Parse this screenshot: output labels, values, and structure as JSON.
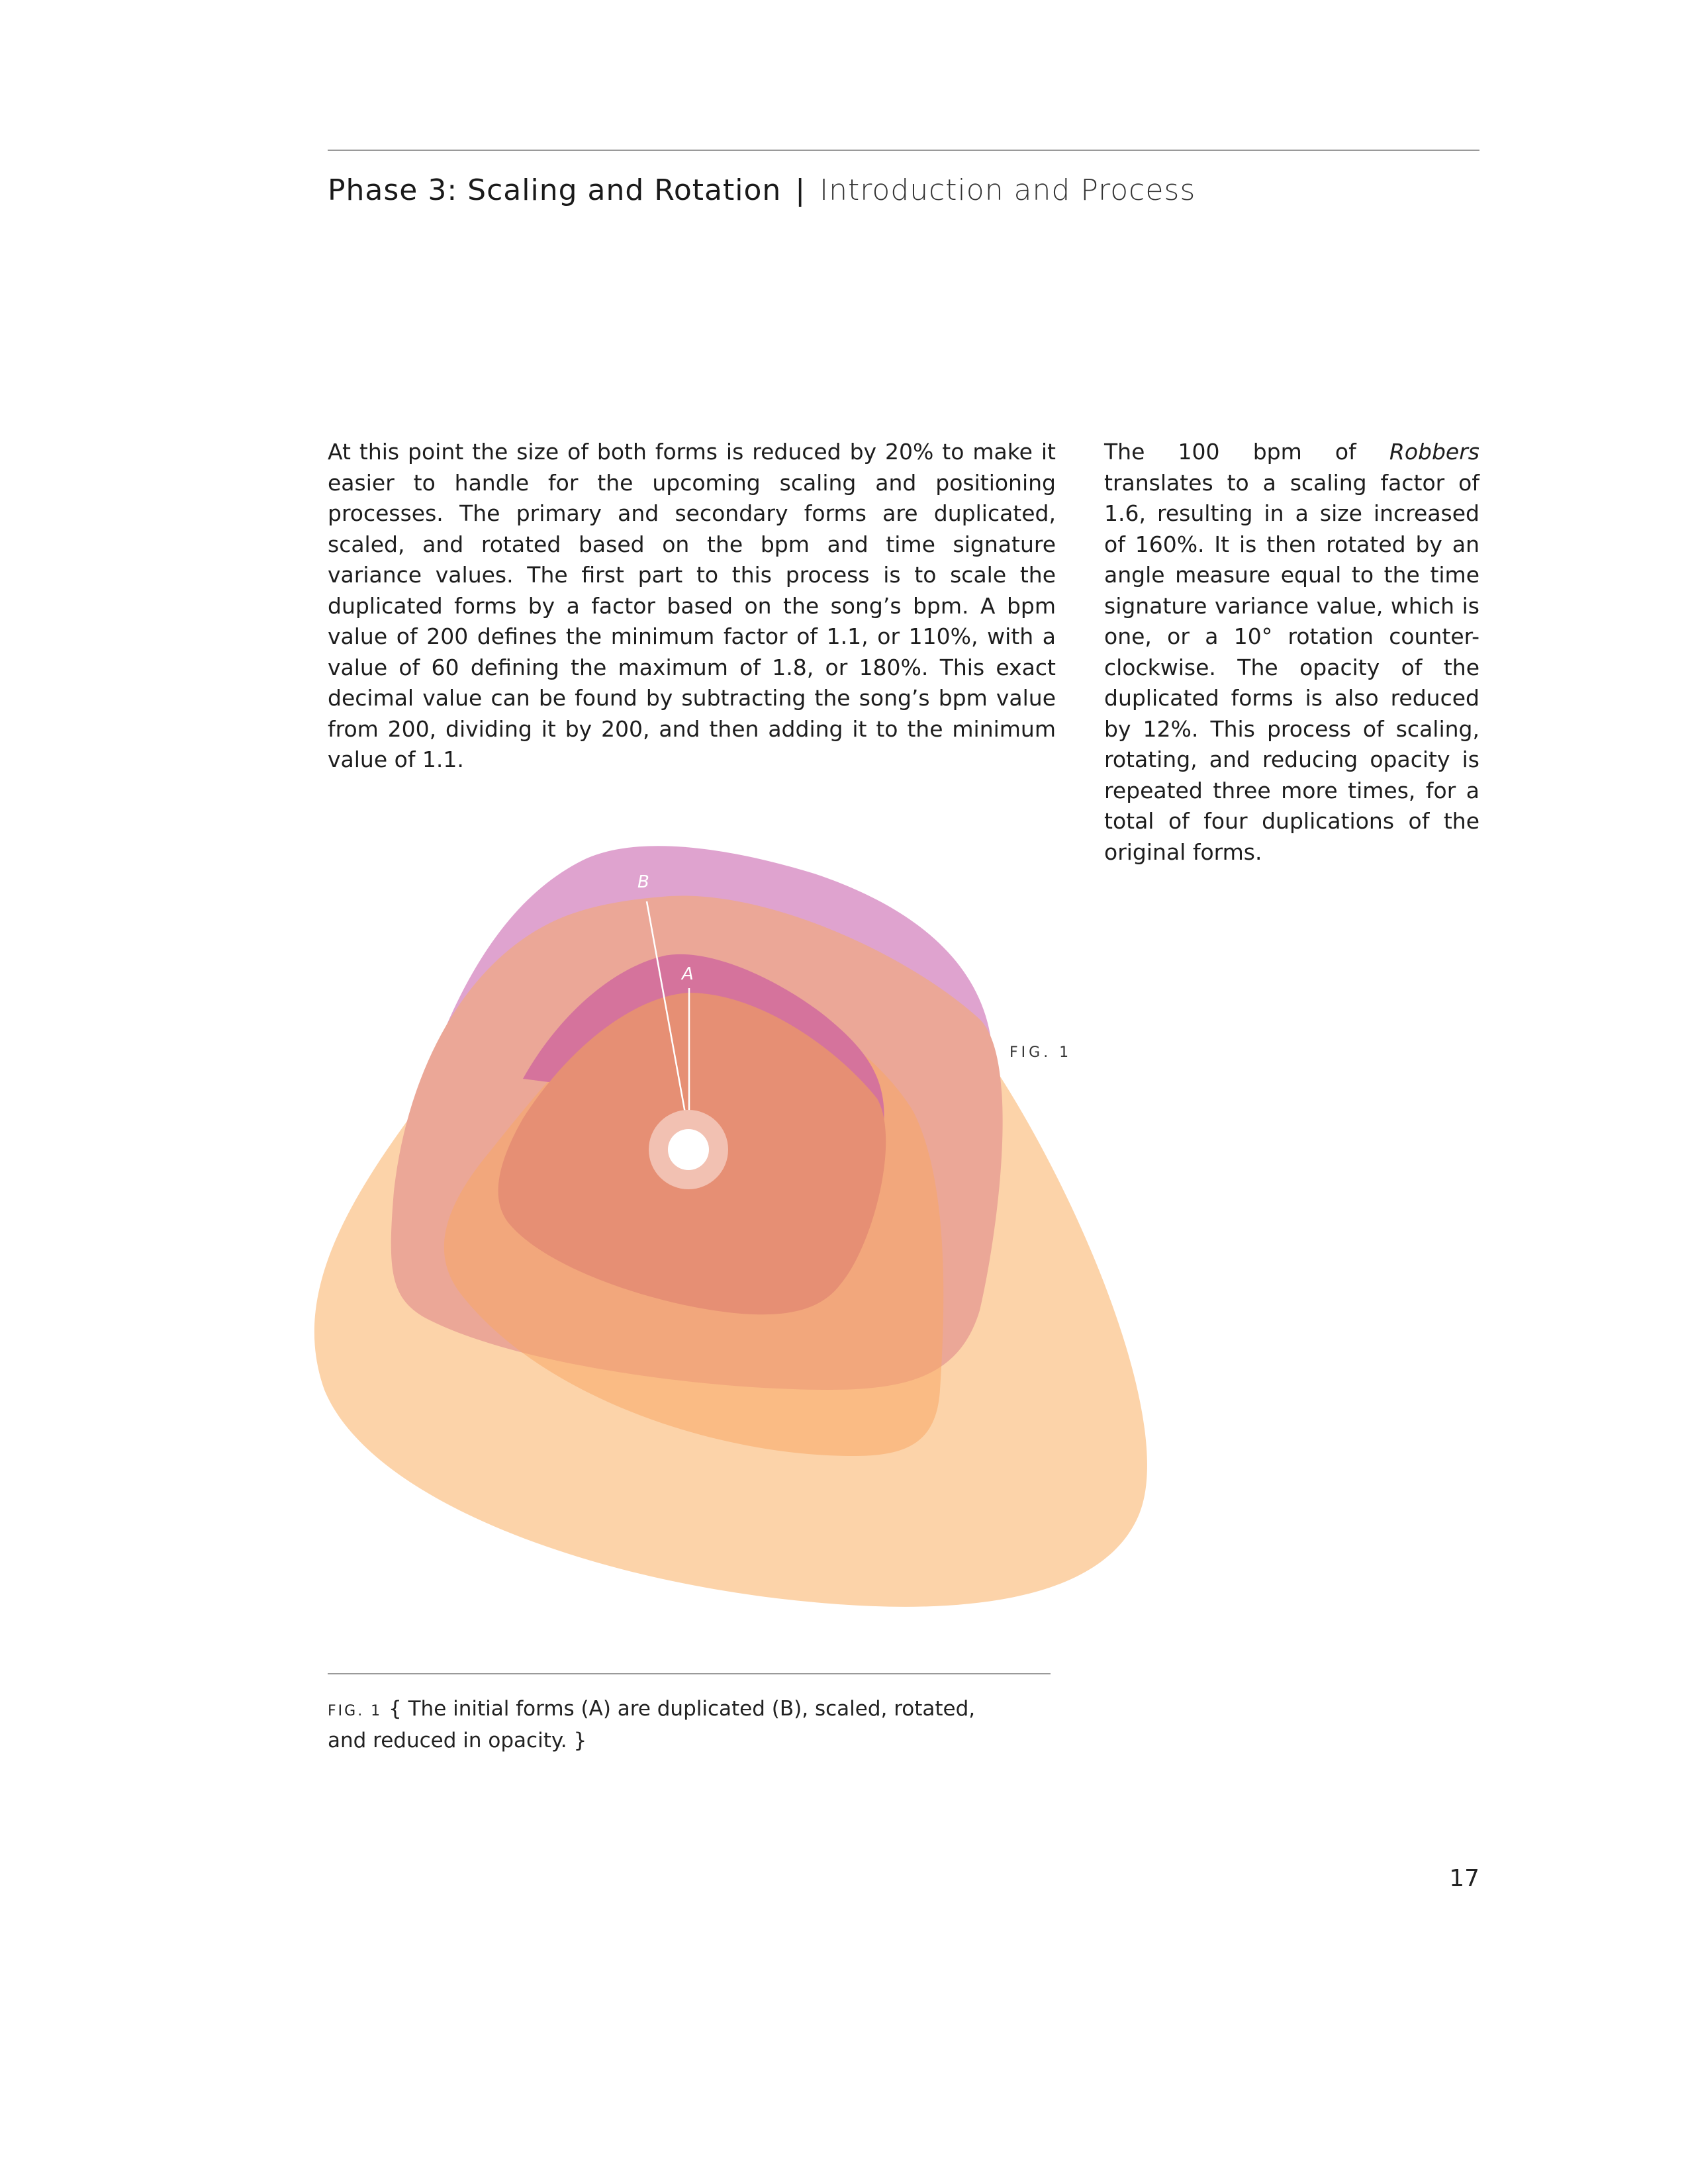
{
  "header": {
    "title": "Phase 3: Scaling and Rotation",
    "separator": "|",
    "subtitle": "Introduction and Process"
  },
  "body": {
    "left_paragraph": "At this point the size of both forms is reduced by 20% to make it easier to handle for the upcoming scaling and positioning processes. The primary and secondary forms are duplicated, scaled, and rotated based on the bpm and time signature variance values. The first part to this process is to scale the duplicated forms by a factor based on the song’s bpm. A bpm value of 200 defines the minimum factor of 1.1, or 110%, with a value of 60 defining the maximum of 1.8, or 180%. This exact decimal value can be found by subtracting the song’s bpm value from 200, dividing it by 200, and then adding it to the minimum value of 1.1.",
    "right_intro": "The 100 bpm of ",
    "right_song": "Robbers",
    "right_rest": " translates to a scaling factor of 1.6, resulting in a size increased of 160%. It is then rotated by an angle measure equal to the time signature vari­ance value, which is one, or a 10° rotation counter-clockwise. The opacity of the duplicated forms is also reduced by 12%. This process of scaling, rotating, and reducing opacity is repeated three more times, for a total of four duplica­tions of the original forms."
  },
  "figure": {
    "label": "FIG. 1",
    "label_b": "B",
    "label_a": "A",
    "colors": {
      "purple": "#dfa3cf",
      "salmon": "#eba797",
      "magenta": "#d5739c",
      "orange_light": "#fcd3a9",
      "orange_mid": "#f7a866",
      "inner": "#e68f74",
      "ring": "#f2c1b2",
      "center": "#ffffff"
    }
  },
  "caption": {
    "tag": "FIG. 1",
    "text": " { The initial forms (A) are duplicated (B), scaled, rotated, and reduced in opacity. }"
  },
  "page_number": "17"
}
